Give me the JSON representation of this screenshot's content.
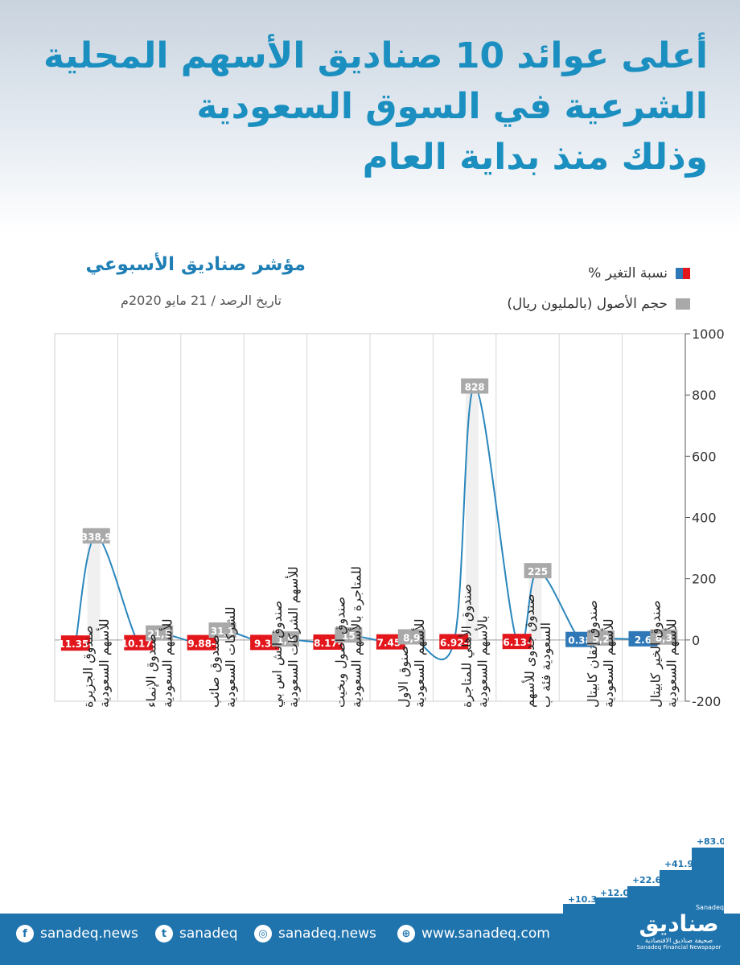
{
  "header": {
    "title_lines": [
      "أعلى عوائد 10 صناديق الأسهم المحلية",
      "الشرعية في السوق السعودية",
      "وذلك منذ بداية العام"
    ]
  },
  "chart_header": {
    "title": "مؤشر صناديق الأسبوعي",
    "subtitle": "تاريخ الرصد / 21 مايو 2020م"
  },
  "legend": [
    {
      "label": "نسبة التغير %"
    },
    {
      "label": "حجم الأصول (بالمليون ريال)"
    }
  ],
  "colors": {
    "title": "#1a8fc0",
    "change_negative": "#e2161b",
    "change_positive": "#2f78b8",
    "assets_label": "#a9a9a9",
    "line": "#2a86bd",
    "footer": "#1f74ae"
  },
  "chart_data": {
    "type": "line",
    "categories": [
      "صندوق الجزيرة للأسهم السعودية",
      "صندوق الإنماء للأسهم السعودية",
      "صندوق صائب للشركات السعودية",
      "صندوق اتش اس بي للأسهم الشركات السعودية",
      "صندوق اصول وبخيت للمتاجرة بالأسهم السعودية",
      "صنوق الاول للأسهم السعودية",
      "صندوق الأهلي للمتاجرة بالأسهم السعودية",
      "صندوق جدوى للأسهم السعودية فئة ب",
      "صندوق إتقان كابيتال للأسهم السعودية",
      "صندوق الخير كابيتال للأسهم السعودية"
    ],
    "series": [
      {
        "name": "نسبة التغير %",
        "values": [
          -11.35,
          -10.17,
          -9.88,
          -9.3,
          -8.17,
          -7.45,
          -6.92,
          -6.13,
          0.38,
          2.6
        ],
        "labels": [
          "11.35-",
          "10.17-",
          "9.88-",
          "9.3-",
          "8.17-",
          "7.45-",
          "6.92-",
          "6.13-",
          "0.38",
          "2.6"
        ]
      },
      {
        "name": "حجم الأصول (بالمليون ريال)",
        "values": [
          338.9,
          21.5,
          31.1,
          1.9,
          15,
          8.9,
          828,
          225,
          5.2,
          8.3
        ],
        "labels": [
          "338,9",
          "21,5",
          "31,1",
          "1,9",
          "15",
          "8,9",
          "828",
          "225",
          "5,2",
          "8,3"
        ]
      }
    ],
    "y_ticks": [
      "1000",
      "800",
      "600",
      "400",
      "200",
      "0",
      "-200"
    ],
    "ylim": [
      -200,
      1000
    ],
    "grid": true
  },
  "stairs_labels": [
    "+10.3",
    "+12.0",
    "+22.6",
    "+41.9",
    "+83.0"
  ],
  "footer": {
    "items": [
      {
        "icon": "facebook-icon",
        "text": "sanadeq.news"
      },
      {
        "icon": "twitter-icon",
        "text": "sanadeq"
      },
      {
        "icon": "instagram-icon",
        "text": "sanadeq.news"
      },
      {
        "icon": "globe-icon",
        "text": "www.sanadeq.com"
      }
    ],
    "logo": {
      "en_top": "Sanadeq",
      "ar": "صناديق",
      "ar_sub": "صحيفة صناديق الاقتصادية",
      "en_sub": "Sanadeq Financial Newspaper"
    }
  }
}
